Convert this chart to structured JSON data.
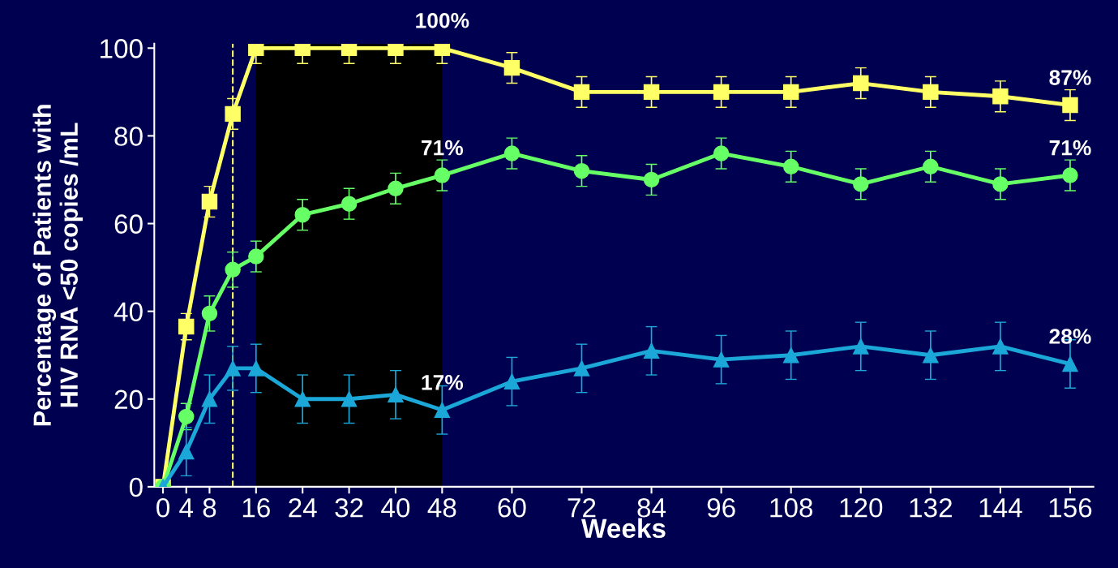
{
  "chart_data": {
    "type": "line",
    "xlabel": "Weeks",
    "ylabel": "Percentage of Patients with\nHIV RNA <50 copies /mL",
    "x": [
      0,
      4,
      8,
      12,
      16,
      24,
      32,
      40,
      48,
      60,
      72,
      84,
      96,
      108,
      120,
      132,
      144,
      156
    ],
    "series": [
      {
        "color": "#ffff66",
        "marker": "square",
        "values": [
          0,
          36.5,
          65,
          85,
          100,
          100,
          100,
          100,
          100,
          95.5,
          90,
          90,
          90,
          90,
          92,
          90,
          89,
          87
        ],
        "errors": [
          null,
          3,
          3.5,
          3.5,
          3.5,
          3.5,
          3.5,
          3.5,
          3.5,
          3.5,
          3.5,
          3.5,
          3.5,
          3.5,
          3.5,
          3.5,
          3.5,
          3.5
        ],
        "value_labels": [
          null,
          null,
          null,
          null,
          null,
          null,
          null,
          null,
          "100%",
          null,
          null,
          null,
          null,
          null,
          null,
          null,
          null,
          "87%"
        ]
      },
      {
        "color": "#66ff66",
        "marker": "circle",
        "values": [
          0,
          16,
          39.5,
          49.5,
          52.5,
          62,
          64.5,
          68,
          71,
          76,
          72,
          70,
          76,
          73,
          69,
          73,
          69,
          71
        ],
        "errors": [
          null,
          3,
          4,
          4,
          3.5,
          3.5,
          3.5,
          3.5,
          3.5,
          3.5,
          3.5,
          3.5,
          3.5,
          3.5,
          3.5,
          3.5,
          3.5,
          3.5
        ],
        "value_labels": [
          null,
          null,
          null,
          null,
          null,
          null,
          null,
          null,
          "71%",
          null,
          null,
          null,
          null,
          null,
          null,
          null,
          null,
          "71%"
        ]
      },
      {
        "color": "#1ba8d8",
        "marker": "triangle",
        "values": [
          0,
          8,
          20,
          27,
          27,
          20,
          20,
          21,
          17.5,
          24,
          27,
          31,
          29,
          30,
          32,
          30,
          32,
          28
        ],
        "errors": [
          null,
          5.5,
          5.5,
          5,
          5.5,
          5.5,
          5.5,
          5.5,
          5.5,
          5.5,
          5.5,
          5.5,
          5.5,
          5.5,
          5.5,
          5.5,
          5.5,
          5.5
        ],
        "value_labels": [
          null,
          null,
          null,
          null,
          null,
          null,
          null,
          null,
          "17%",
          null,
          null,
          null,
          null,
          null,
          null,
          null,
          null,
          "28%"
        ]
      }
    ],
    "xlim": [
      -1.5,
      160
    ],
    "xticks": [
      0,
      4,
      8,
      16,
      24,
      32,
      40,
      48,
      60,
      72,
      84,
      96,
      108,
      120,
      132,
      144,
      156
    ],
    "ylim": [
      0,
      101
    ],
    "yticks": [
      0,
      20,
      40,
      60,
      80,
      100
    ],
    "ref_lines": [
      {
        "axis": "x",
        "value": 12,
        "color": "#ffff66",
        "line_style": "dashed"
      }
    ],
    "bands": [
      {
        "axis": "x",
        "from": 16,
        "to": 48,
        "color": "#000000"
      }
    ],
    "grid": false,
    "legend": false,
    "line_style": "solid"
  }
}
